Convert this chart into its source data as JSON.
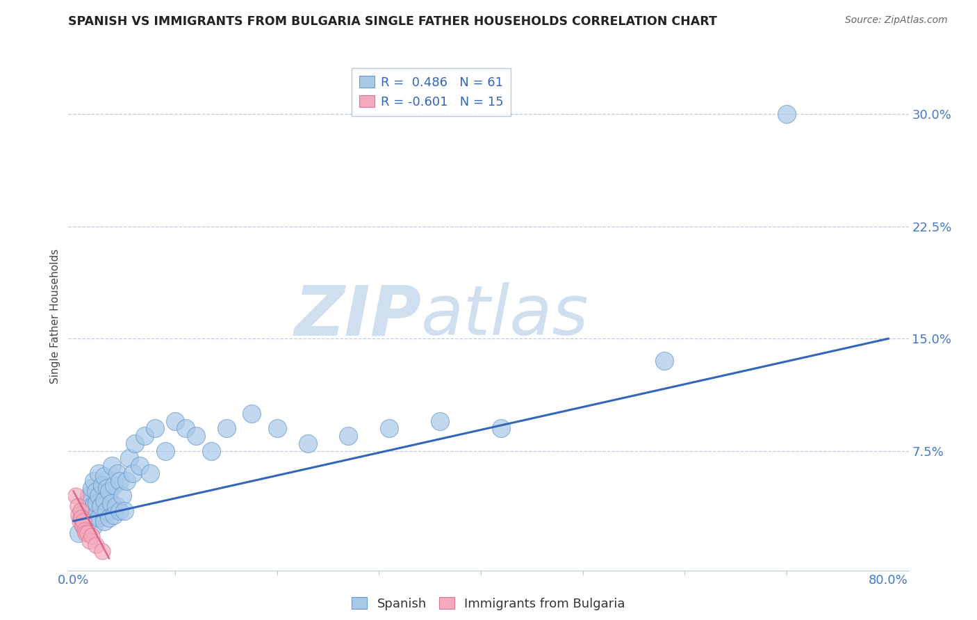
{
  "title": "SPANISH VS IMMIGRANTS FROM BULGARIA SINGLE FATHER HOUSEHOLDS CORRELATION CHART",
  "source": "Source: ZipAtlas.com",
  "ylabel": "Single Father Households",
  "xlim": [
    -0.005,
    0.82
  ],
  "ylim": [
    -0.005,
    0.335
  ],
  "yticks": [
    0.0,
    0.075,
    0.15,
    0.225,
    0.3
  ],
  "ytick_labels": [
    "",
    "7.5%",
    "15.0%",
    "22.5%",
    "30.0%"
  ],
  "xtick_positions": [
    0.0,
    0.8
  ],
  "xtick_labels": [
    "0.0%",
    "80.0%"
  ],
  "blue_R": 0.486,
  "blue_N": 61,
  "pink_R": -0.601,
  "pink_N": 15,
  "blue_color": "#A8C8E8",
  "blue_edge_color": "#6699CC",
  "pink_color": "#F4AABB",
  "pink_edge_color": "#DD7799",
  "blue_line_color": "#3366BB",
  "pink_line_color": "#DD6688",
  "watermark_color": "#D0DFF0",
  "grid_color": "#BBCCDD",
  "title_color": "#222222",
  "tick_color": "#4477CC",
  "source_color": "#666666",
  "blue_scatter_x": [
    0.005,
    0.008,
    0.01,
    0.012,
    0.013,
    0.015,
    0.015,
    0.016,
    0.018,
    0.018,
    0.02,
    0.02,
    0.02,
    0.022,
    0.022,
    0.023,
    0.025,
    0.025,
    0.025,
    0.027,
    0.028,
    0.03,
    0.03,
    0.03,
    0.032,
    0.033,
    0.035,
    0.035,
    0.037,
    0.038,
    0.04,
    0.04,
    0.042,
    0.043,
    0.045,
    0.045,
    0.048,
    0.05,
    0.052,
    0.055,
    0.058,
    0.06,
    0.065,
    0.07,
    0.075,
    0.08,
    0.09,
    0.1,
    0.11,
    0.12,
    0.135,
    0.15,
    0.175,
    0.2,
    0.23,
    0.27,
    0.31,
    0.36,
    0.42,
    0.58,
    0.7
  ],
  "blue_scatter_y": [
    0.02,
    0.03,
    0.025,
    0.035,
    0.04,
    0.028,
    0.045,
    0.035,
    0.038,
    0.05,
    0.025,
    0.038,
    0.055,
    0.032,
    0.048,
    0.04,
    0.03,
    0.045,
    0.06,
    0.038,
    0.052,
    0.028,
    0.042,
    0.058,
    0.035,
    0.05,
    0.03,
    0.048,
    0.04,
    0.065,
    0.032,
    0.052,
    0.038,
    0.06,
    0.035,
    0.055,
    0.045,
    0.035,
    0.055,
    0.07,
    0.06,
    0.08,
    0.065,
    0.085,
    0.06,
    0.09,
    0.075,
    0.095,
    0.09,
    0.085,
    0.075,
    0.09,
    0.1,
    0.09,
    0.08,
    0.085,
    0.09,
    0.095,
    0.09,
    0.135,
    0.3
  ],
  "pink_scatter_x": [
    0.002,
    0.004,
    0.005,
    0.006,
    0.007,
    0.008,
    0.009,
    0.01,
    0.011,
    0.012,
    0.014,
    0.016,
    0.018,
    0.022,
    0.028
  ],
  "pink_scatter_y": [
    0.045,
    0.038,
    0.032,
    0.028,
    0.035,
    0.03,
    0.025,
    0.028,
    0.022,
    0.02,
    0.02,
    0.015,
    0.018,
    0.012,
    0.008
  ],
  "blue_line_x": [
    0.0,
    0.8
  ],
  "blue_line_y": [
    0.028,
    0.15
  ],
  "pink_line_x": [
    0.0,
    0.035
  ],
  "pink_line_y": [
    0.048,
    0.003
  ]
}
